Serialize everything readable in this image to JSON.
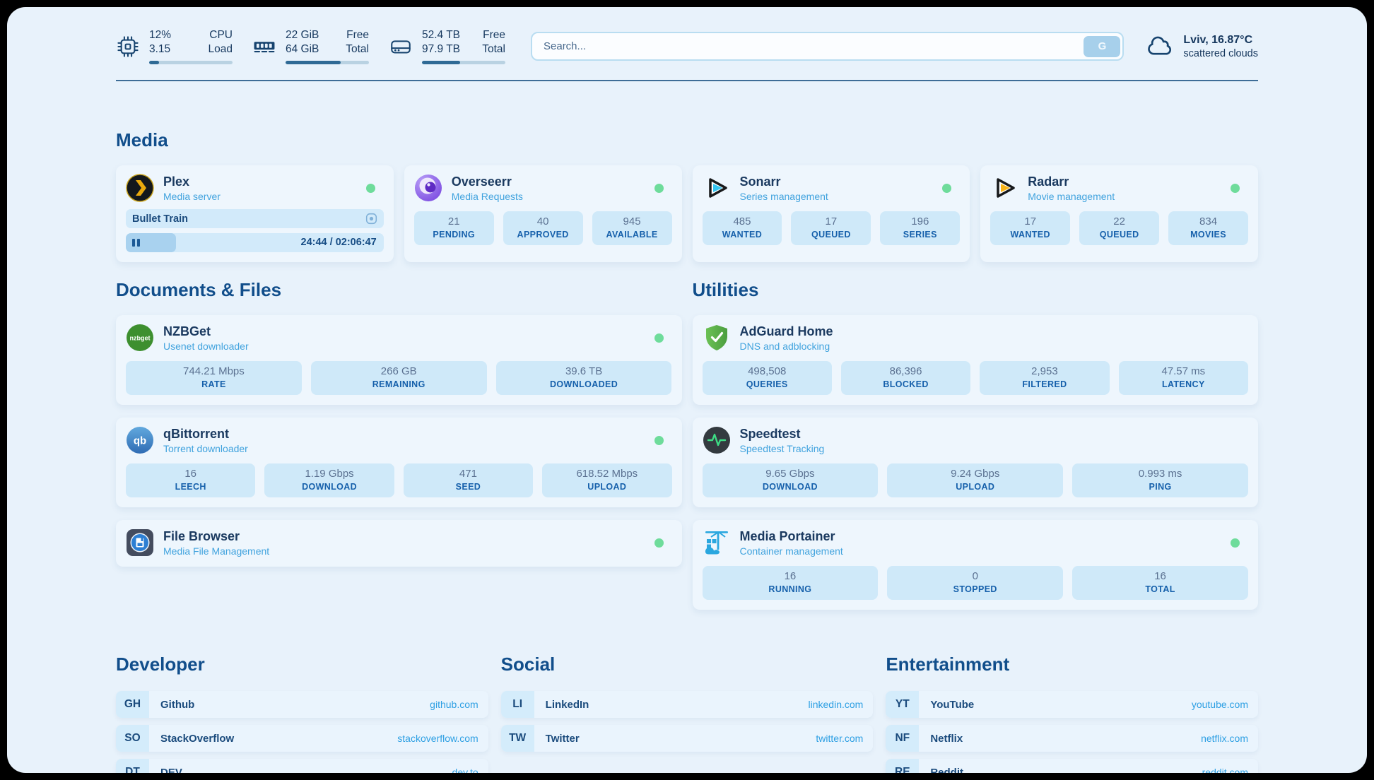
{
  "colors": {
    "accent": "#2d9fe3",
    "status_online": "#6edc9b",
    "heading": "#114e8b"
  },
  "header": {
    "cpu": {
      "value1": "12%",
      "value2": "3.15",
      "label1": "CPU",
      "label2": "Load",
      "percent": 12
    },
    "ram": {
      "value1": "22 GiB",
      "value2": "64 GiB",
      "label1": "Free",
      "label2": "Total",
      "percent": 66
    },
    "disk": {
      "value1": "52.4 TB",
      "value2": "97.9 TB",
      "label1": "Free",
      "label2": "Total",
      "percent": 46
    },
    "search": {
      "placeholder": "Search...",
      "button_label": "G"
    },
    "weather": {
      "location": "Lviv, 16.87°C",
      "condition": "scattered clouds"
    }
  },
  "icons": {
    "nzbget_text": "nzbget",
    "qbittorrent_text": "qb"
  },
  "media": {
    "title": "Media",
    "cards": [
      {
        "title": "Plex",
        "subtitle": "Media server",
        "online": true,
        "now_playing": {
          "title": "Bullet Train",
          "time": "24:44 / 02:06:47",
          "progress_percent": 19.5
        }
      },
      {
        "title": "Overseerr",
        "subtitle": "Media Requests",
        "online": true,
        "stats": [
          {
            "value": "21",
            "label": "PENDING"
          },
          {
            "value": "40",
            "label": "APPROVED"
          },
          {
            "value": "945",
            "label": "AVAILABLE"
          }
        ]
      },
      {
        "title": "Sonarr",
        "subtitle": "Series management",
        "online": true,
        "stats": [
          {
            "value": "485",
            "label": "WANTED"
          },
          {
            "value": "17",
            "label": "QUEUED"
          },
          {
            "value": "196",
            "label": "SERIES"
          }
        ]
      },
      {
        "title": "Radarr",
        "subtitle": "Movie management",
        "online": true,
        "stats": [
          {
            "value": "17",
            "label": "WANTED"
          },
          {
            "value": "22",
            "label": "QUEUED"
          },
          {
            "value": "834",
            "label": "MOVIES"
          }
        ]
      }
    ]
  },
  "documents": {
    "title": "Documents & Files",
    "cards": [
      {
        "title": "NZBGet",
        "subtitle": "Usenet downloader",
        "online": true,
        "stats": [
          {
            "value": "744.21 Mbps",
            "label": "RATE"
          },
          {
            "value": "266 GB",
            "label": "REMAINING"
          },
          {
            "value": "39.6 TB",
            "label": "DOWNLOADED"
          }
        ]
      },
      {
        "title": "qBittorrent",
        "subtitle": "Torrent downloader",
        "online": true,
        "stats": [
          {
            "value": "16",
            "label": "LEECH"
          },
          {
            "value": "1.19 Gbps",
            "label": "DOWNLOAD"
          },
          {
            "value": "471",
            "label": "SEED"
          },
          {
            "value": "618.52 Mbps",
            "label": "UPLOAD"
          }
        ]
      },
      {
        "title": "File Browser",
        "subtitle": "Media File Management",
        "online": true
      }
    ]
  },
  "utilities": {
    "title": "Utilities",
    "cards": [
      {
        "title": "AdGuard Home",
        "subtitle": "DNS and adblocking",
        "online": false,
        "stats": [
          {
            "value": "498,508",
            "label": "QUERIES"
          },
          {
            "value": "86,396",
            "label": "BLOCKED"
          },
          {
            "value": "2,953",
            "label": "FILTERED"
          },
          {
            "value": "47.57 ms",
            "label": "LATENCY"
          }
        ]
      },
      {
        "title": "Speedtest",
        "subtitle": "Speedtest Tracking",
        "online": false,
        "stats": [
          {
            "value": "9.65 Gbps",
            "label": "DOWNLOAD"
          },
          {
            "value": "9.24 Gbps",
            "label": "UPLOAD"
          },
          {
            "value": "0.993 ms",
            "label": "PING"
          }
        ]
      },
      {
        "title": "Media Portainer",
        "subtitle": "Container management",
        "online": true,
        "stats": [
          {
            "value": "16",
            "label": "RUNNING"
          },
          {
            "value": "0",
            "label": "STOPPED"
          },
          {
            "value": "16",
            "label": "TOTAL"
          }
        ]
      }
    ]
  },
  "links": {
    "sections": [
      {
        "title": "Developer",
        "items": [
          {
            "abbr": "GH",
            "name": "Github",
            "url": "github.com"
          },
          {
            "abbr": "SO",
            "name": "StackOverflow",
            "url": "stackoverflow.com"
          },
          {
            "abbr": "DT",
            "name": "DEV",
            "url": "dev.to"
          }
        ]
      },
      {
        "title": "Social",
        "items": [
          {
            "abbr": "LI",
            "name": "LinkedIn",
            "url": "linkedin.com"
          },
          {
            "abbr": "TW",
            "name": "Twitter",
            "url": "twitter.com"
          }
        ]
      },
      {
        "title": "Entertainment",
        "items": [
          {
            "abbr": "YT",
            "name": "YouTube",
            "url": "youtube.com"
          },
          {
            "abbr": "NF",
            "name": "Netflix",
            "url": "netflix.com"
          },
          {
            "abbr": "RE",
            "name": "Reddit",
            "url": "reddit.com"
          }
        ]
      }
    ]
  }
}
